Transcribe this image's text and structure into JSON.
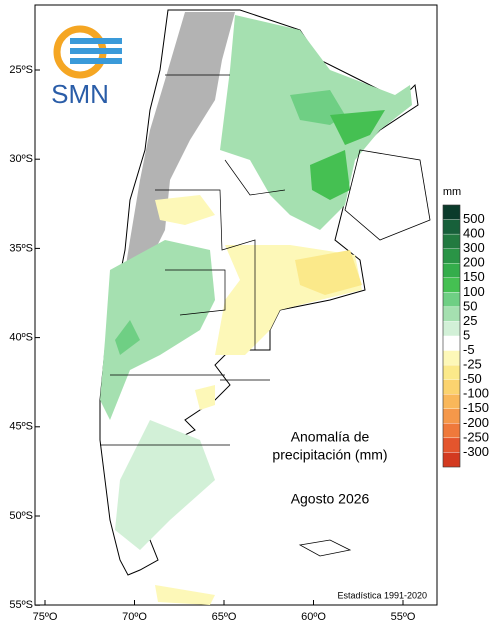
{
  "logo": "SMN",
  "map": {
    "lat_labels": [
      "25ºS",
      "30ºS",
      "35ºS",
      "40ºS",
      "45ºS",
      "50ºS",
      "55ºS"
    ],
    "lon_labels": [
      "75ºO",
      "70ºO",
      "65ºO",
      "60ºO",
      "55ºO"
    ],
    "title_line1": "Anomalía de",
    "title_line2": "precipitación (mm)",
    "period": "Agosto 2026",
    "statistic": "Estadística 1991-2020"
  },
  "legend": {
    "unit": "mm",
    "labels": [
      500,
      400,
      300,
      200,
      150,
      100,
      50,
      25,
      5,
      -5,
      -25,
      -50,
      -100,
      -150,
      -200,
      -250,
      -300
    ],
    "colors": [
      "#0b3b2b",
      "#17603a",
      "#227a40",
      "#2a9446",
      "#34ad4b",
      "#45c052",
      "#6fcf84",
      "#a5e0b0",
      "#d2f0d7",
      "#ffffff",
      "#fdf8b8",
      "#fbe98a",
      "#fbd36f",
      "#f9b75a",
      "#f5984a",
      "#ef793b",
      "#e4552d",
      "#d33a20"
    ]
  }
}
